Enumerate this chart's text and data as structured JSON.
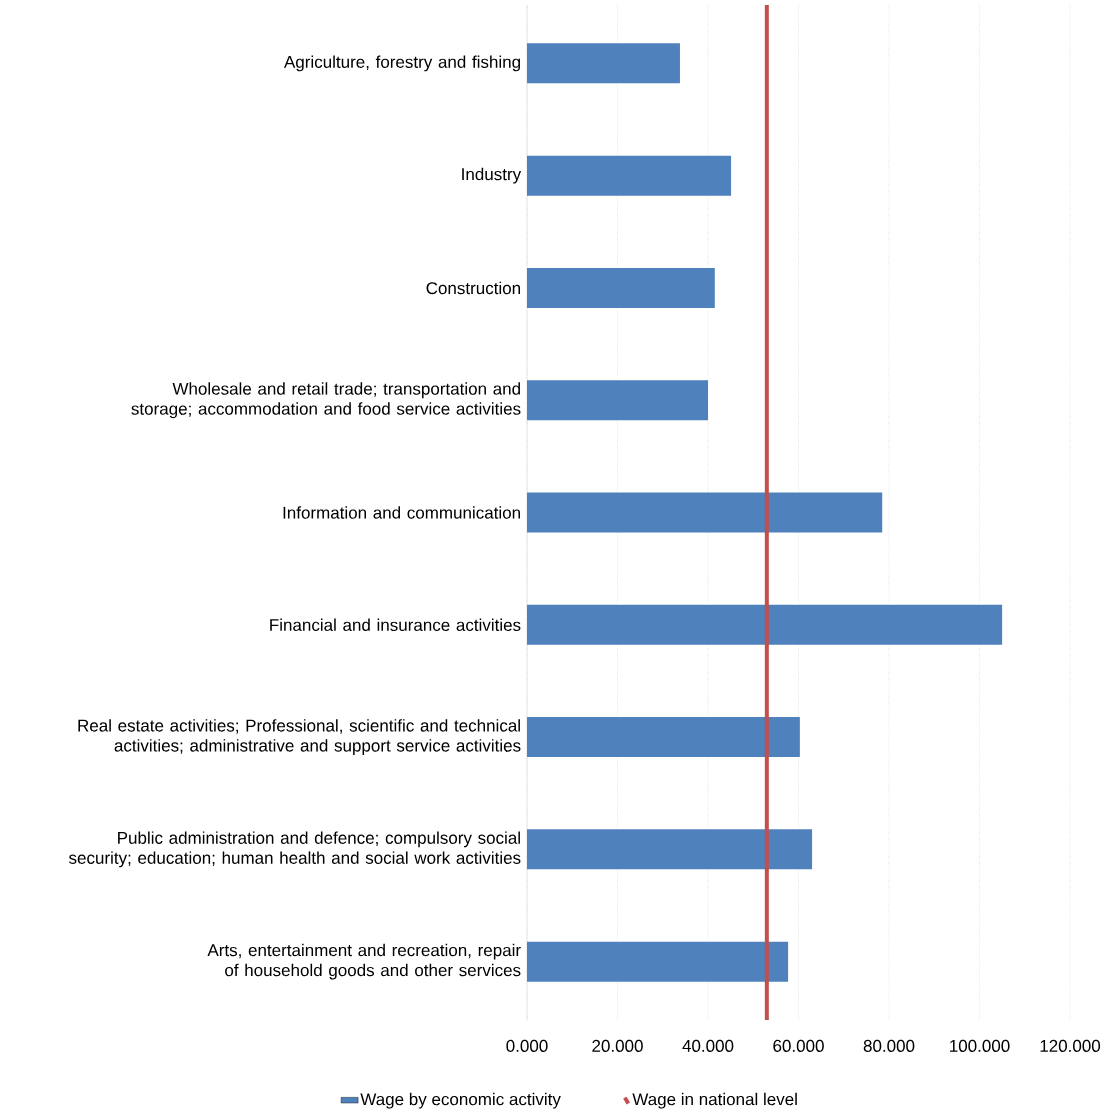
{
  "chart_data": {
    "type": "bar",
    "orientation": "horizontal",
    "categories": [
      "Agriculture, forestry and fishing",
      "Industry",
      "Construction",
      "Wholesale and retail trade;  transportation and storage; accommodation and food service activities",
      "Information and communication",
      "Financial and insurance activities",
      "Real estate activities; Professional, scientific and technical activities; administrative and support service activities",
      "Public administration and defence; compulsory social security; education; human health and social work activities",
      "Arts, entertainment and recreation, repair of household goods and other services"
    ],
    "series": [
      {
        "name": "Wage by economic activity",
        "color": "#4f81bd",
        "values": [
          33.8,
          45.1,
          41.5,
          40.0,
          78.5,
          105.0,
          60.3,
          63.0,
          57.7
        ]
      }
    ],
    "ref_lines": [
      {
        "axis": "x",
        "value": 53.0,
        "label": "Wage in national level",
        "color": "#c0504d"
      }
    ],
    "xlim": [
      0,
      120
    ],
    "xticks": [
      {
        "value": 0,
        "label": "0.000"
      },
      {
        "value": 20,
        "label": "20.000"
      },
      {
        "value": 40,
        "label": "40.000"
      },
      {
        "value": 60,
        "label": "60.000"
      },
      {
        "value": 80,
        "label": "80.000"
      },
      {
        "value": 100,
        "label": "100.000"
      },
      {
        "value": 120,
        "label": "120.000"
      }
    ],
    "grid": "x",
    "legend": "bottom"
  }
}
